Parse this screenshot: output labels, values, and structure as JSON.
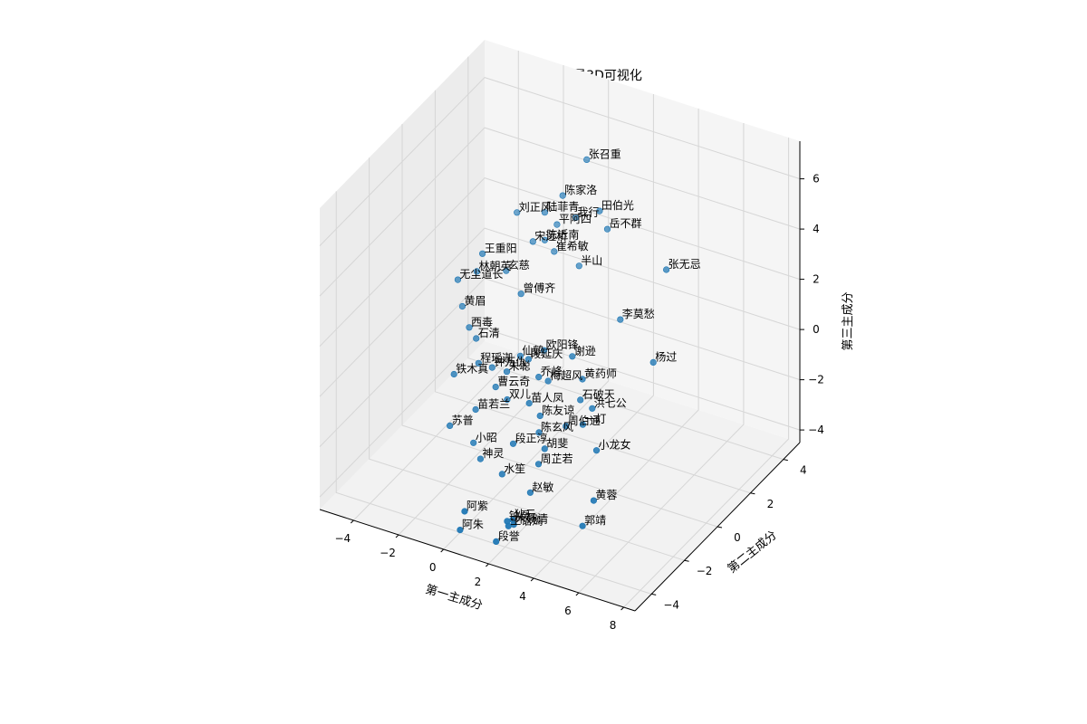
{
  "chart_data": {
    "type": "scatter",
    "title": "金庸小说人物词向量3D可视化",
    "xlabel": "第一主成分",
    "ylabel": "第二主成分",
    "zlabel": "第三主成分",
    "xlim": [
      -5.5,
      8.5
    ],
    "ylim": [
      -5,
      5
    ],
    "zlim": [
      -4.5,
      7.5
    ],
    "xticks": [
      -4,
      -2,
      0,
      2,
      4,
      6,
      8
    ],
    "yticks": [
      -4,
      -2,
      0,
      2,
      4
    ],
    "zticks": [
      -4,
      -2,
      0,
      2,
      4,
      6
    ],
    "xtick_labels": [
      "−4",
      "−2",
      "0",
      "2",
      "4",
      "6",
      "8"
    ],
    "ytick_labels": [
      "−4",
      "−2",
      "0",
      "2",
      "4"
    ],
    "ztick_labels": [
      "−4",
      "−2",
      "0",
      "2",
      "4",
      "6"
    ],
    "grid": true,
    "point_color": "#1f77b4",
    "points": [
      {
        "name": "张召重",
        "x": 0.5,
        "y": 3.0,
        "z": 5.8
      },
      {
        "name": "陈家洛",
        "x": -0.2,
        "y": 2.5,
        "z": 4.5
      },
      {
        "name": "田伯光",
        "x": 1.8,
        "y": 2.0,
        "z": 4.8
      },
      {
        "name": "岳不群",
        "x": 2.0,
        "y": 2.2,
        "z": 4.0
      },
      {
        "name": "张无忌",
        "x": 5.5,
        "y": 1.0,
        "z": 4.2
      },
      {
        "name": "陆菲青",
        "x": -1.0,
        "y": 2.5,
        "z": 3.6
      },
      {
        "name": "我行",
        "x": 0.3,
        "y": 2.6,
        "z": 3.7
      },
      {
        "name": "平阿四",
        "x": -0.6,
        "y": 2.7,
        "z": 3.1
      },
      {
        "name": "陈近南",
        "x": -1.0,
        "y": 2.5,
        "z": 2.5
      },
      {
        "name": "宋远桥",
        "x": -1.6,
        "y": 2.6,
        "z": 2.2
      },
      {
        "name": "崔希敏",
        "x": -0.8,
        "y": 2.8,
        "z": 1.9
      },
      {
        "name": "半山",
        "x": 0.6,
        "y": 2.4,
        "z": 2.0
      },
      {
        "name": "刘正风",
        "x": -2.6,
        "y": 3.0,
        "z": 2.8
      },
      {
        "name": "李莫愁",
        "x": 3.6,
        "y": 0.8,
        "z": 1.8
      },
      {
        "name": "杨过",
        "x": 5.8,
        "y": -0.2,
        "z": 1.4
      },
      {
        "name": "王重阳",
        "x": -3.4,
        "y": 2.0,
        "z": 1.6
      },
      {
        "name": "玄慈",
        "x": -2.2,
        "y": 1.8,
        "z": 1.4
      },
      {
        "name": "林朝英",
        "x": -3.5,
        "y": 1.8,
        "z": 1.0
      },
      {
        "name": "曾傅齐",
        "x": -1.1,
        "y": 1.2,
        "z": 1.2
      },
      {
        "name": "无尘道长",
        "x": -4.2,
        "y": 1.6,
        "z": 0.6
      },
      {
        "name": "谢逊",
        "x": 2.2,
        "y": -0.2,
        "z": 0.6
      },
      {
        "name": "黄药师",
        "x": 2.8,
        "y": -0.4,
        "z": 0.0
      },
      {
        "name": "石破天",
        "x": 3.0,
        "y": -0.8,
        "z": -0.5
      },
      {
        "name": "洪七公",
        "x": 3.6,
        "y": -0.9,
        "z": -0.6
      },
      {
        "name": "周伯通",
        "x": 2.8,
        "y": -1.4,
        "z": -1.2
      },
      {
        "name": "一灯",
        "x": 3.4,
        "y": -1.2,
        "z": -1.1
      },
      {
        "name": "小龙女",
        "x": 4.3,
        "y": -1.6,
        "z": -1.6
      },
      {
        "name": "欧阳锋",
        "x": 0.8,
        "y": 0.0,
        "z": 0.3
      },
      {
        "name": "段延庆",
        "x": 0.4,
        "y": -0.4,
        "z": 0.1
      },
      {
        "name": "乔峰",
        "x": 1.0,
        "y": -0.6,
        "z": -0.3
      },
      {
        "name": "梅超风",
        "x": 1.2,
        "y": -0.3,
        "z": -0.6
      },
      {
        "name": "仙鹤",
        "x": -0.4,
        "y": 0.2,
        "z": -0.4
      },
      {
        "name": "苗人凤",
        "x": 0.8,
        "y": -0.9,
        "z": -1.2
      },
      {
        "name": "陈友谅",
        "x": 1.5,
        "y": -1.2,
        "z": -1.3
      },
      {
        "name": "陈玄风",
        "x": 1.6,
        "y": -1.4,
        "z": -1.8
      },
      {
        "name": "胡斐",
        "x": 2.0,
        "y": -1.6,
        "z": -2.2
      },
      {
        "name": "周芷若",
        "x": 1.8,
        "y": -1.7,
        "z": -2.8
      },
      {
        "name": "赵敏",
        "x": 1.8,
        "y": -2.2,
        "z": -3.6
      },
      {
        "name": "黄蓉",
        "x": 5.2,
        "y": -3.0,
        "z": -2.4
      },
      {
        "name": "郭靖",
        "x": 5.0,
        "y": -3.4,
        "z": -3.2
      },
      {
        "name": "狄云",
        "x": 1.6,
        "y": -3.0,
        "z": -4.2
      },
      {
        "name": "水笙",
        "x": 0.4,
        "y": -2.0,
        "z": -3.4
      },
      {
        "name": "段正淳",
        "x": 0.6,
        "y": -1.6,
        "z": -2.4
      },
      {
        "name": "阿紫",
        "x": 0.2,
        "y": -4.0,
        "z": -3.6
      },
      {
        "name": "阿朱",
        "x": 0.0,
        "y": -4.0,
        "z": -4.4
      },
      {
        "name": "木婉清",
        "x": 1.8,
        "y": -3.2,
        "z": -4.2
      },
      {
        "name": "钟灵",
        "x": 1.8,
        "y": -3.6,
        "z": -3.8
      },
      {
        "name": "王语嫣",
        "x": 2.0,
        "y": -3.8,
        "z": -3.8
      },
      {
        "name": "段誉",
        "x": 1.6,
        "y": -4.0,
        "z": -4.4
      },
      {
        "name": "苏普",
        "x": -2.8,
        "y": -0.8,
        "z": -3.2
      },
      {
        "name": "小昭",
        "x": -1.6,
        "y": -1.0,
        "z": -3.4
      },
      {
        "name": "神灵",
        "x": -1.0,
        "y": -1.4,
        "z": -3.6
      },
      {
        "name": "苗若兰",
        "x": -1.8,
        "y": -0.6,
        "z": -2.4
      },
      {
        "name": "曹云奇",
        "x": -1.2,
        "y": -0.2,
        "z": -1.6
      },
      {
        "name": "钟万仇",
        "x": -1.8,
        "y": 0.4,
        "z": -1.4
      },
      {
        "name": "朱聪",
        "x": -1.0,
        "y": 0.2,
        "z": -1.2
      },
      {
        "name": "双儿",
        "x": -0.4,
        "y": -0.6,
        "z": -1.6
      },
      {
        "name": "铁木真",
        "x": -3.2,
        "y": 0.0,
        "z": -1.8
      },
      {
        "name": "西毒",
        "x": -3.4,
        "y": 1.2,
        "z": -0.8
      },
      {
        "name": "石清",
        "x": -2.8,
        "y": 0.8,
        "z": -0.8
      },
      {
        "name": "黄眉",
        "x": -4.0,
        "y": 1.6,
        "z": -0.4
      },
      {
        "name": "程瑶迦",
        "x": -2.4,
        "y": 0.4,
        "z": -1.4
      }
    ]
  }
}
